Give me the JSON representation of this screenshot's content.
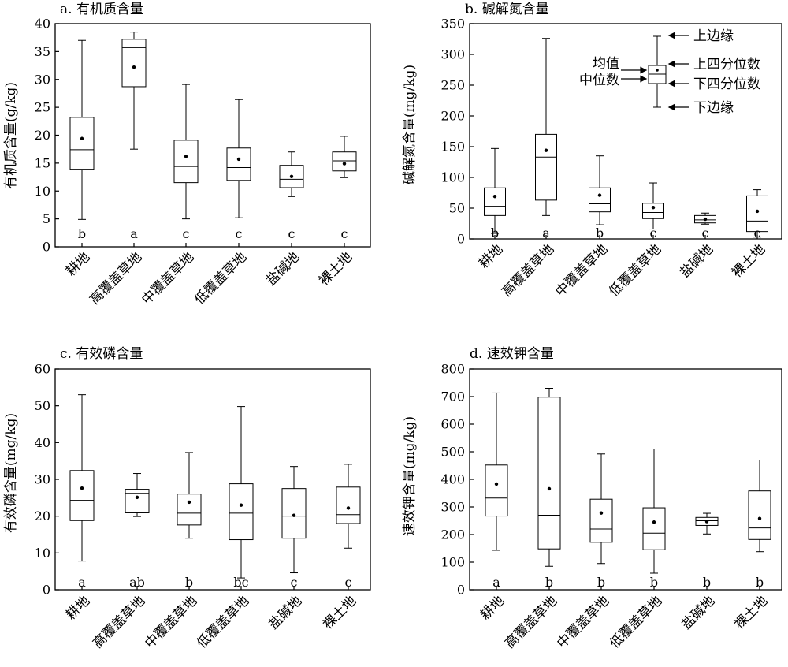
{
  "chart_data": [
    {
      "type": "box",
      "title": "a. 有机质含量",
      "ylabel": "有机质含量(g/kg)",
      "ylim": [
        0,
        40
      ],
      "yticks": [
        0,
        5,
        10,
        15,
        20,
        25,
        30,
        35,
        40
      ],
      "categories": [
        "耕地",
        "高覆盖草地",
        "中覆盖草地",
        "低覆盖草地",
        "盐碱地",
        "裸土地"
      ],
      "boxes": [
        {
          "min": 4.9,
          "q1": 13.9,
          "median": 17.4,
          "q3": 23.2,
          "max": 37.0,
          "mean": 19.4
        },
        {
          "min": 17.5,
          "q1": 28.7,
          "median": 35.7,
          "q3": 37.2,
          "max": 38.5,
          "mean": 32.2
        },
        {
          "min": 5.0,
          "q1": 11.5,
          "median": 14.4,
          "q3": 19.1,
          "max": 29.1,
          "mean": 16.2
        },
        {
          "min": 5.2,
          "q1": 11.9,
          "median": 14.2,
          "q3": 17.7,
          "max": 26.4,
          "mean": 15.7
        },
        {
          "min": 9.0,
          "q1": 10.6,
          "median": 12.1,
          "q3": 14.6,
          "max": 17.0,
          "mean": 12.6
        },
        {
          "min": 12.4,
          "q1": 13.6,
          "median": 15.4,
          "q3": 17.0,
          "max": 19.8,
          "mean": 14.9
        }
      ],
      "letters": [
        "b",
        "a",
        "c",
        "c",
        "c",
        "c"
      ]
    },
    {
      "type": "box",
      "title": "b. 碱解氮含量",
      "ylabel": "碱解氮含量(mg/kg)",
      "ylim": [
        0,
        350
      ],
      "yticks": [
        0,
        50,
        100,
        150,
        200,
        250,
        300,
        350
      ],
      "categories": [
        "耕地",
        "高覆盖草地",
        "中覆盖草地",
        "低覆盖草地",
        "盐碱地",
        "裸土地"
      ],
      "boxes": [
        {
          "min": 9,
          "q1": 38,
          "median": 53,
          "q3": 83,
          "max": 147,
          "mean": 69
        },
        {
          "min": 38,
          "q1": 63,
          "median": 133,
          "q3": 170,
          "max": 326,
          "mean": 144
        },
        {
          "min": 23,
          "q1": 44,
          "median": 57,
          "q3": 83,
          "max": 135,
          "mean": 71
        },
        {
          "min": 16,
          "q1": 33,
          "median": 43,
          "q3": 58,
          "max": 91,
          "mean": 51
        },
        {
          "min": 24,
          "q1": 26,
          "median": 31,
          "q3": 38,
          "max": 42,
          "mean": 32
        },
        {
          "min": 3,
          "q1": 12,
          "median": 29,
          "q3": 70,
          "max": 80,
          "mean": 45
        }
      ],
      "letters": [
        "b",
        "a",
        "b",
        "c",
        "c",
        "c"
      ],
      "legend": {
        "upper_edge": "上边缘",
        "upper_quartile": "上四分位数",
        "lower_quartile": "下四分位数",
        "lower_edge": "下边缘",
        "mean": "均值",
        "median": "中位数"
      }
    },
    {
      "type": "box",
      "title": "c. 有效磷含量",
      "ylabel": "有效磷含量(mg/kg)",
      "ylim": [
        0,
        60
      ],
      "yticks": [
        0,
        10,
        20,
        30,
        40,
        50,
        60
      ],
      "categories": [
        "耕地",
        "高覆盖草地",
        "中覆盖草地",
        "低覆盖草地",
        "盐碱地",
        "裸土地"
      ],
      "boxes": [
        {
          "min": 7.8,
          "q1": 18.8,
          "median": 24.3,
          "q3": 32.4,
          "max": 53.0,
          "mean": 27.6
        },
        {
          "min": 19.9,
          "q1": 20.9,
          "median": 26.2,
          "q3": 27.3,
          "max": 31.6,
          "mean": 25.1
        },
        {
          "min": 14.0,
          "q1": 17.6,
          "median": 20.8,
          "q3": 26.0,
          "max": 37.3,
          "mean": 23.8
        },
        {
          "min": 3.2,
          "q1": 13.6,
          "median": 20.8,
          "q3": 28.8,
          "max": 49.8,
          "mean": 23.0
        },
        {
          "min": 4.6,
          "q1": 14.0,
          "median": 20.0,
          "q3": 27.5,
          "max": 33.5,
          "mean": 20.2
        },
        {
          "min": 11.3,
          "q1": 18.0,
          "median": 20.4,
          "q3": 27.9,
          "max": 34.1,
          "mean": 22.2
        }
      ],
      "letters": [
        "a",
        "ab",
        "b",
        "bc",
        "c",
        "c"
      ]
    },
    {
      "type": "box",
      "title": "d. 速效钾含量",
      "ylabel": "速效钾含量(mg/kg)",
      "ylim": [
        0,
        800
      ],
      "yticks": [
        0,
        100,
        200,
        300,
        400,
        500,
        600,
        700,
        800
      ],
      "categories": [
        "耕地",
        "高覆盖草地",
        "中覆盖草地",
        "低覆盖草地",
        "盐碱地",
        "裸土地"
      ],
      "boxes": [
        {
          "min": 143,
          "q1": 267,
          "median": 332,
          "q3": 452,
          "max": 713,
          "mean": 383
        },
        {
          "min": 85,
          "q1": 148,
          "median": 270,
          "q3": 698,
          "max": 730,
          "mean": 366
        },
        {
          "min": 95,
          "q1": 172,
          "median": 220,
          "q3": 328,
          "max": 492,
          "mean": 278
        },
        {
          "min": 60,
          "q1": 145,
          "median": 205,
          "q3": 297,
          "max": 510,
          "mean": 245
        },
        {
          "min": 202,
          "q1": 233,
          "median": 250,
          "q3": 262,
          "max": 277,
          "mean": 247
        },
        {
          "min": 138,
          "q1": 182,
          "median": 224,
          "q3": 358,
          "max": 470,
          "mean": 258
        }
      ],
      "letters": [
        "a",
        "b",
        "b",
        "b",
        "b",
        "b"
      ]
    }
  ]
}
